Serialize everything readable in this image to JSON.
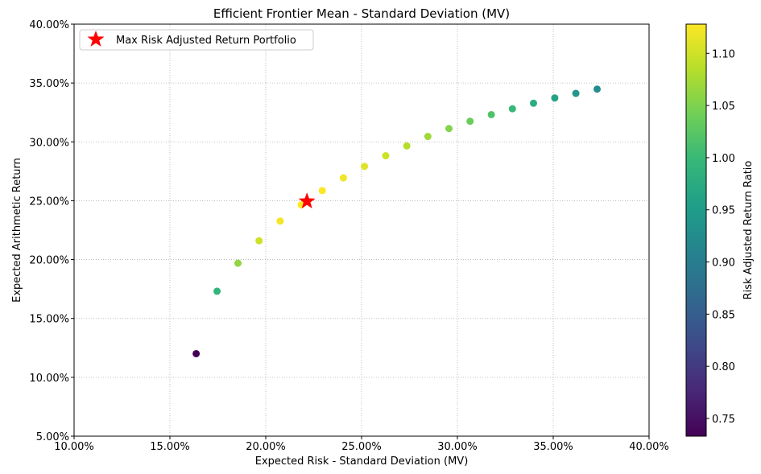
{
  "chart_data": {
    "type": "scatter",
    "title": "Efficient Frontier Mean - Standard Deviation (MV)",
    "xlabel": "Expected Risk - Standard Deviation (MV)",
    "ylabel": "Expected Arithmetic Return",
    "xlim": [
      0.1,
      0.4
    ],
    "ylim": [
      0.05,
      0.4
    ],
    "x_ticks": [
      0.1,
      0.15,
      0.2,
      0.25,
      0.3,
      0.35,
      0.4
    ],
    "x_tick_labels": [
      "10.00%",
      "15.00%",
      "20.00%",
      "25.00%",
      "30.00%",
      "35.00%",
      "40.00%"
    ],
    "y_ticks": [
      0.05,
      0.1,
      0.15,
      0.2,
      0.25,
      0.3,
      0.35,
      0.4
    ],
    "y_tick_labels": [
      "5.00%",
      "10.00%",
      "15.00%",
      "20.00%",
      "25.00%",
      "30.00%",
      "35.00%",
      "40.00%"
    ],
    "grid": true,
    "colormap": "viridis",
    "colorbar": {
      "label": "Risk Adjusted Return Ratio",
      "range": [
        0.733,
        1.128
      ],
      "ticks": [
        0.75,
        0.8,
        0.85,
        0.9,
        0.95,
        1.0,
        1.05,
        1.1
      ],
      "tick_labels": [
        "0.75",
        "0.80",
        "0.85",
        "0.90",
        "0.95",
        "1.00",
        "1.05",
        "1.10"
      ]
    },
    "points": [
      {
        "x": 0.1637,
        "y": 0.1201,
        "ratio": 0.733
      },
      {
        "x": 0.1746,
        "y": 0.1731,
        "ratio": 0.991
      },
      {
        "x": 0.1855,
        "y": 0.1969,
        "ratio": 1.061
      },
      {
        "x": 0.1965,
        "y": 0.216,
        "ratio": 1.099
      },
      {
        "x": 0.2075,
        "y": 0.2327,
        "ratio": 1.121
      },
      {
        "x": 0.2185,
        "y": 0.2465,
        "ratio": 1.128
      },
      {
        "x": 0.2295,
        "y": 0.2586,
        "ratio": 1.127
      },
      {
        "x": 0.2405,
        "y": 0.2694,
        "ratio": 1.12
      },
      {
        "x": 0.2515,
        "y": 0.2792,
        "ratio": 1.11
      },
      {
        "x": 0.2626,
        "y": 0.2882,
        "ratio": 1.098
      },
      {
        "x": 0.2736,
        "y": 0.2966,
        "ratio": 1.084
      },
      {
        "x": 0.2846,
        "y": 0.3046,
        "ratio": 1.07
      },
      {
        "x": 0.2956,
        "y": 0.3113,
        "ratio": 1.053
      },
      {
        "x": 0.3066,
        "y": 0.3175,
        "ratio": 1.036
      },
      {
        "x": 0.3177,
        "y": 0.3231,
        "ratio": 1.017
      },
      {
        "x": 0.3287,
        "y": 0.3281,
        "ratio": 0.998
      },
      {
        "x": 0.3397,
        "y": 0.3328,
        "ratio": 0.98
      },
      {
        "x": 0.3508,
        "y": 0.3373,
        "ratio": 0.962
      },
      {
        "x": 0.3618,
        "y": 0.3412,
        "ratio": 0.943
      },
      {
        "x": 0.3729,
        "y": 0.3448,
        "ratio": 0.925
      }
    ],
    "highlight": {
      "label": "Max Risk Adjusted Return Portfolio",
      "x": 0.2215,
      "y": 0.2495,
      "color": "#ff0000",
      "marker": "star"
    },
    "legend_position": "top-left"
  }
}
